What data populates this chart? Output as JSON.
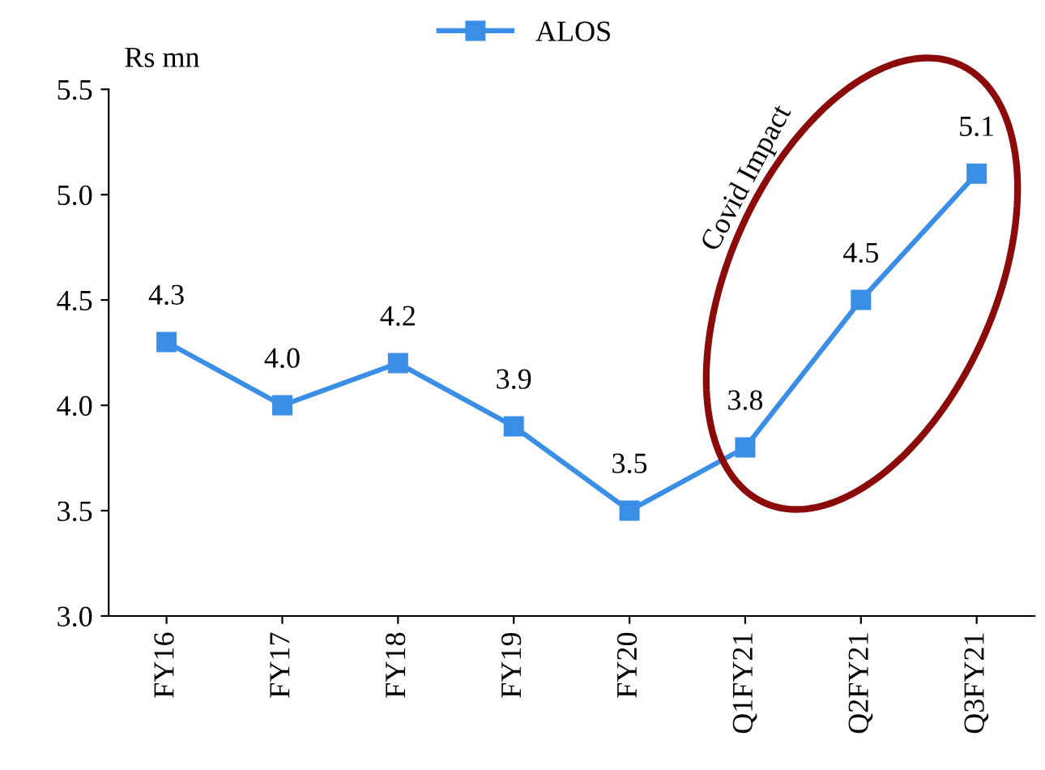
{
  "chart_data": {
    "type": "line",
    "ylabel": "Rs mn",
    "categories": [
      "FY16",
      "FY17",
      "FY18",
      "FY19",
      "FY20",
      "Q1FY21",
      "Q2FY21",
      "Q3FY21"
    ],
    "series": [
      {
        "name": "ALOS",
        "color": "#3a8ee6",
        "values": [
          4.3,
          4.0,
          4.2,
          3.9,
          3.5,
          3.8,
          4.5,
          5.1
        ],
        "value_labels": [
          "4.3",
          "4.0",
          "4.2",
          "3.9",
          "3.5",
          "3.8",
          "4.5",
          "5.1"
        ]
      }
    ],
    "ylim": [
      3.0,
      5.5
    ],
    "yticks": [
      {
        "value": 3.0,
        "label": "3.0"
      },
      {
        "value": 3.5,
        "label": "3.5"
      },
      {
        "value": 4.0,
        "label": "4.0"
      },
      {
        "value": 4.5,
        "label": "4.5"
      },
      {
        "value": 5.0,
        "label": "5.0"
      },
      {
        "value": 5.5,
        "label": "5.5"
      }
    ],
    "annotations": [
      "Covid Impact"
    ],
    "grid": false,
    "legend": "top",
    "marker": "square",
    "line_style": "solid"
  }
}
